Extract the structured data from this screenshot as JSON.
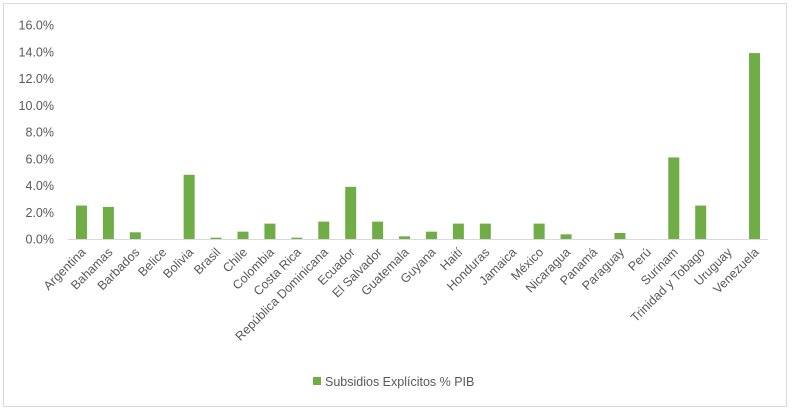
{
  "chart_data": {
    "type": "bar",
    "categories": [
      "Argentina",
      "Bahamas",
      "Barbados",
      "Belice",
      "Bolivia",
      "Brasil",
      "Chile",
      "Colombia",
      "Costa Rica",
      "República Dominicana",
      "Ecuador",
      "El Salvador",
      "Guatemala",
      "Guyana",
      "Haití",
      "Honduras",
      "Jamaica",
      "México",
      "Nicaragua",
      "Panamá",
      "Paraguay",
      "Perú",
      "Surinam",
      "Trinidad y Tobago",
      "Uruguay",
      "Venezuela"
    ],
    "series": [
      {
        "name": "Subsidios Explícitos % PIB",
        "color": "#70ad47",
        "values": [
          2.5,
          2.4,
          0.5,
          0.0,
          4.8,
          0.1,
          0.55,
          1.15,
          0.1,
          1.3,
          3.9,
          1.3,
          0.2,
          0.55,
          1.15,
          1.15,
          0.0,
          1.15,
          0.35,
          0.0,
          0.45,
          0.0,
          6.1,
          2.5,
          0.0,
          13.9
        ]
      }
    ],
    "ylim": [
      0,
      16
    ],
    "yticks": [
      "0.0%",
      "2.0%",
      "4.0%",
      "6.0%",
      "8.0%",
      "10.0%",
      "12.0%",
      "14.0%",
      "16.0%"
    ],
    "ytick_values": [
      0,
      2,
      4,
      6,
      8,
      10,
      12,
      14,
      16
    ],
    "grid": false,
    "legend_position": "bottom",
    "gridline_color": "#d9d9d9",
    "text_color": "#595959"
  }
}
